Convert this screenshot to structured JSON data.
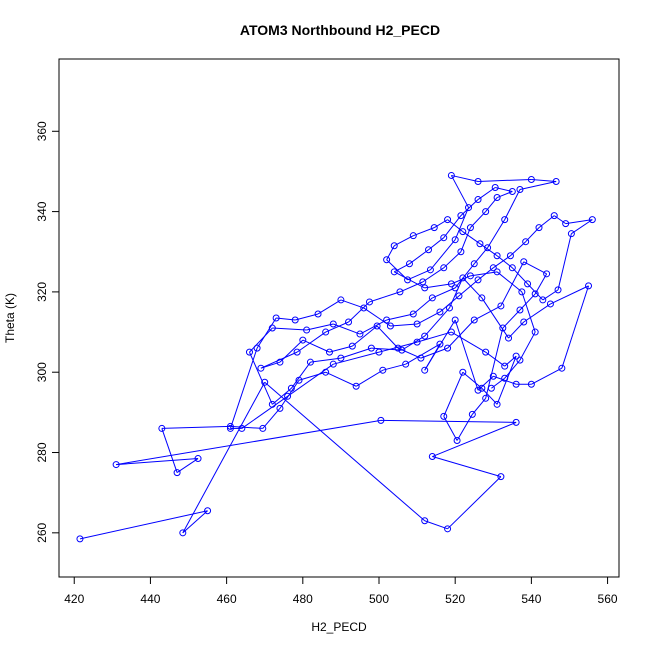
{
  "chart_data": {
    "type": "line",
    "title": "ATOM3 Northbound H2_PECD",
    "xlabel": "H2_PECD",
    "ylabel": "Theta (K)",
    "xlim": [
      416,
      563
    ],
    "ylim": [
      249,
      378
    ],
    "x_ticks": [
      420,
      440,
      460,
      480,
      500,
      520,
      540,
      560
    ],
    "y_ticks": [
      260,
      280,
      300,
      320,
      340,
      360
    ],
    "grid": false,
    "legend": "none",
    "marker": "open-circle",
    "color": "#0000ff",
    "series": [
      {
        "points": [
          [
            421.5,
            258.5
          ],
          [
            455.0,
            265.5
          ],
          [
            448.5,
            260.0
          ],
          [
            470.0,
            297.5
          ],
          [
            512.0,
            263.0
          ],
          [
            518.0,
            261.0
          ],
          [
            532.0,
            274.0
          ],
          [
            514.0,
            279.0
          ],
          [
            536.0,
            287.5
          ],
          [
            500.5,
            288.0
          ],
          [
            431.0,
            277.0
          ],
          [
            452.5,
            278.5
          ],
          [
            447.0,
            275.0
          ],
          [
            443.0,
            286.0
          ],
          [
            461.0,
            286.5
          ],
          [
            469.5,
            286.0
          ],
          [
            474.0,
            291.0
          ],
          [
            479.0,
            298.0
          ],
          [
            486.0,
            300.0
          ],
          [
            494.0,
            296.5
          ],
          [
            501.0,
            300.5
          ],
          [
            507.0,
            302.0
          ],
          [
            516.0,
            307.0
          ],
          [
            512.0,
            300.5
          ],
          [
            520.0,
            313.0
          ],
          [
            526.0,
            295.5
          ],
          [
            530.0,
            299.0
          ],
          [
            536.0,
            297.0
          ],
          [
            540.0,
            297.0
          ],
          [
            548.0,
            301.0
          ],
          [
            555.0,
            321.5
          ],
          [
            545.0,
            317.0
          ],
          [
            538.0,
            312.5
          ],
          [
            534.0,
            308.5
          ],
          [
            527.0,
            318.5
          ],
          [
            522.0,
            323.5
          ],
          [
            518.5,
            316.0
          ],
          [
            512.0,
            309.0
          ],
          [
            506.0,
            305.5
          ],
          [
            498.0,
            306.0
          ],
          [
            490.0,
            303.5
          ],
          [
            482.0,
            302.5
          ],
          [
            477.0,
            296.0
          ],
          [
            472.0,
            292.0
          ],
          [
            466.0,
            305.0
          ],
          [
            472.0,
            311.0
          ],
          [
            481.0,
            310.5
          ],
          [
            488.0,
            312.0
          ],
          [
            495.0,
            309.5
          ],
          [
            502.0,
            313.0
          ],
          [
            509.0,
            314.5
          ],
          [
            514.0,
            318.5
          ],
          [
            520.0,
            321.0
          ],
          [
            525.0,
            327.0
          ],
          [
            528.5,
            331.0
          ],
          [
            533.0,
            338.0
          ],
          [
            537.0,
            345.5
          ],
          [
            546.5,
            347.5
          ],
          [
            540.0,
            348.0
          ],
          [
            526.0,
            347.5
          ],
          [
            519.0,
            349.0
          ],
          [
            523.5,
            341.0
          ],
          [
            520.0,
            333.0
          ],
          [
            513.5,
            325.5
          ],
          [
            507.5,
            323.0
          ],
          [
            502.0,
            328.0
          ],
          [
            504.0,
            331.5
          ],
          [
            509.0,
            334.0
          ],
          [
            514.5,
            336.0
          ],
          [
            518.0,
            338.0
          ],
          [
            522.0,
            335.0
          ],
          [
            526.5,
            332.0
          ],
          [
            531.0,
            329.0
          ],
          [
            535.0,
            326.0
          ],
          [
            539.0,
            322.0
          ],
          [
            543.0,
            318.0
          ],
          [
            547.0,
            320.5
          ],
          [
            550.5,
            334.5
          ],
          [
            556.0,
            338.0
          ],
          [
            549.0,
            337.0
          ],
          [
            546.0,
            339.0
          ],
          [
            542.0,
            336.0
          ],
          [
            538.5,
            332.5
          ],
          [
            534.5,
            329.0
          ],
          [
            530.0,
            326.0
          ],
          [
            526.0,
            323.0
          ],
          [
            521.0,
            319.0
          ],
          [
            516.0,
            315.0
          ],
          [
            510.0,
            312.0
          ],
          [
            503.0,
            311.5
          ],
          [
            496.0,
            316.0
          ],
          [
            490.0,
            318.0
          ],
          [
            484.0,
            314.5
          ],
          [
            478.0,
            313.0
          ],
          [
            473.0,
            313.5
          ],
          [
            468.0,
            306.0
          ],
          [
            461.0,
            286.0
          ],
          [
            464.0,
            286.0
          ],
          [
            476.0,
            294.0
          ],
          [
            488.0,
            302.0
          ],
          [
            500.0,
            305.0
          ],
          [
            510.0,
            307.5
          ],
          [
            519.0,
            310.0
          ],
          [
            528.0,
            305.0
          ],
          [
            533.0,
            301.5
          ],
          [
            536.0,
            304.0
          ],
          [
            531.0,
            292.0
          ],
          [
            527.0,
            296.0
          ],
          [
            522.0,
            300.0
          ],
          [
            517.0,
            289.0
          ],
          [
            520.5,
            283.0
          ],
          [
            524.5,
            289.5
          ],
          [
            528.0,
            293.5
          ],
          [
            532.5,
            311.0
          ],
          [
            537.0,
            315.5
          ],
          [
            541.0,
            319.5
          ],
          [
            544.0,
            324.5
          ],
          [
            538.0,
            327.5
          ],
          [
            532.0,
            316.5
          ],
          [
            525.0,
            313.0
          ],
          [
            518.0,
            306.0
          ],
          [
            511.0,
            303.5
          ],
          [
            505.0,
            306.0
          ],
          [
            499.5,
            311.5
          ],
          [
            493.0,
            306.5
          ],
          [
            487.0,
            305.0
          ],
          [
            480.0,
            308.0
          ],
          [
            474.0,
            302.5
          ],
          [
            469.0,
            301.0
          ],
          [
            478.5,
            305.0
          ],
          [
            486.0,
            310.0
          ],
          [
            492.0,
            312.5
          ],
          [
            497.5,
            317.5
          ],
          [
            505.5,
            320.0
          ],
          [
            511.5,
            322.5
          ],
          [
            517.0,
            326.0
          ],
          [
            521.5,
            330.0
          ],
          [
            524.0,
            336.0
          ],
          [
            528.0,
            340.0
          ],
          [
            531.0,
            343.5
          ],
          [
            535.0,
            345.0
          ],
          [
            530.5,
            346.0
          ],
          [
            526.0,
            343.0
          ],
          [
            521.5,
            339.0
          ],
          [
            517.0,
            333.5
          ],
          [
            513.0,
            330.5
          ],
          [
            508.0,
            327.0
          ],
          [
            504.0,
            325.0
          ],
          [
            512.0,
            321.0
          ],
          [
            519.0,
            322.0
          ],
          [
            524.0,
            324.0
          ],
          [
            531.0,
            325.0
          ],
          [
            537.5,
            320.0
          ],
          [
            541.0,
            310.0
          ],
          [
            537.0,
            303.0
          ],
          [
            533.0,
            298.5
          ],
          [
            529.5,
            296.0
          ]
        ]
      }
    ]
  }
}
